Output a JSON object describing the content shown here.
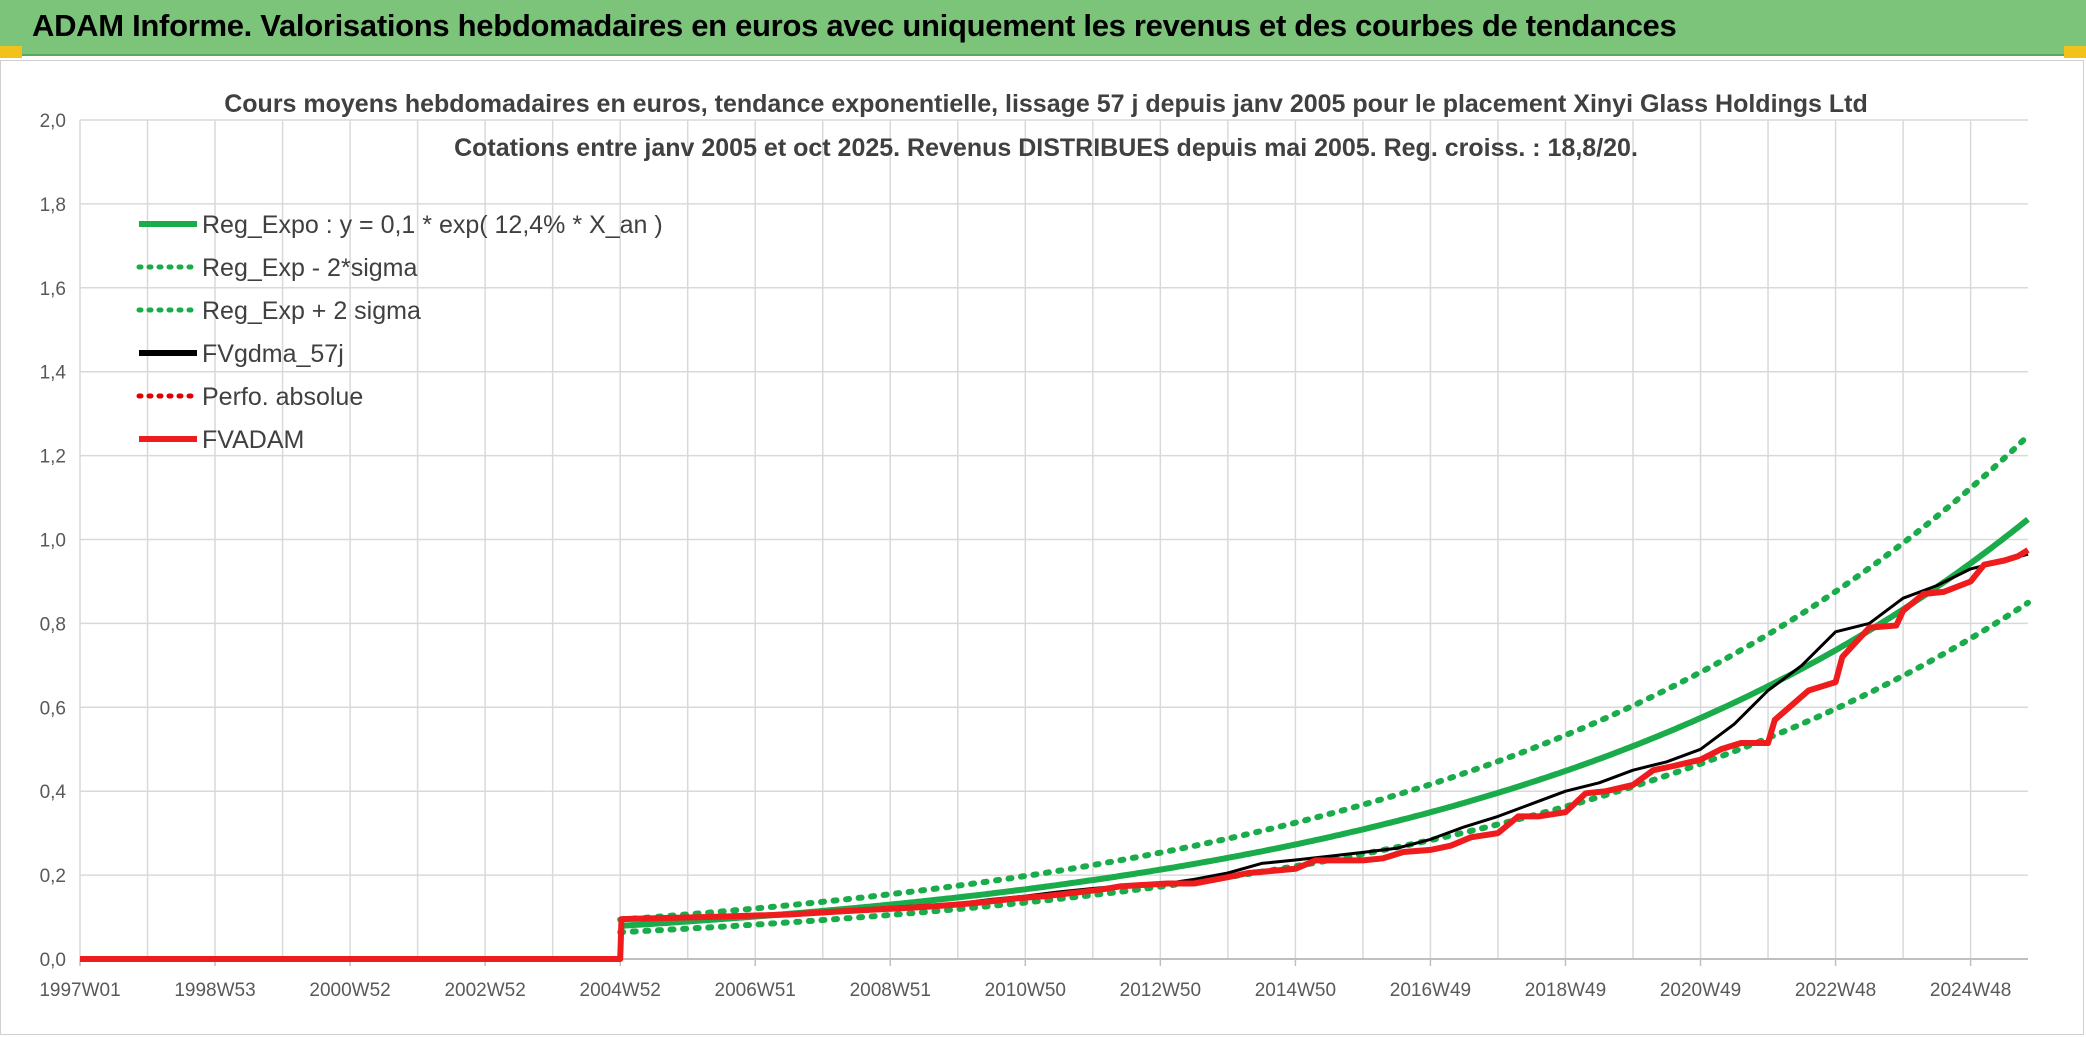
{
  "banner": {
    "title": "ADAM Informe. Valorisations hebdomadaires en euros avec uniquement les revenus et des courbes de tendances",
    "background": "#7cc47a",
    "corner_color": "#f2c21b"
  },
  "chart_data": {
    "type": "line",
    "title_lines": [
      "Cours moyens hebdomadaires en euros, tendance exponentielle, lissage 57 j depuis janv 2005 pour le placement Xinyi Glass Holdings Ltd",
      "Cotations entre janv 2005 et oct 2025. Revenus DISTRIBUES depuis mai 2005. Reg. croiss. : 18,8/20."
    ],
    "xlabel": "",
    "ylabel": "",
    "x_range": [
      1997.0,
      2025.85
    ],
    "ylim": [
      0,
      2.0
    ],
    "y_ticks": [
      0.0,
      0.2,
      0.4,
      0.6,
      0.8,
      1.0,
      1.2,
      1.4,
      1.6,
      1.8,
      2.0
    ],
    "y_tick_labels": [
      "0,0",
      "0,2",
      "0,4",
      "0,6",
      "0,8",
      "1,0",
      "1,2",
      "1,4",
      "1,6",
      "1,8",
      "2,0"
    ],
    "x_tick_labels": [
      {
        "label": "1997W01",
        "x": 1997.0
      },
      {
        "label": "1998W53",
        "x": 1999.0
      },
      {
        "label": "2000W52",
        "x": 2001.0
      },
      {
        "label": "2002W52",
        "x": 2003.0
      },
      {
        "label": "2004W52",
        "x": 2005.0
      },
      {
        "label": "2006W51",
        "x": 2007.0
      },
      {
        "label": "2008W51",
        "x": 2009.0
      },
      {
        "label": "2010W50",
        "x": 2011.0
      },
      {
        "label": "2012W50",
        "x": 2013.0
      },
      {
        "label": "2014W50",
        "x": 2015.0
      },
      {
        "label": "2016W49",
        "x": 2017.0
      },
      {
        "label": "2018W49",
        "x": 2019.0
      },
      {
        "label": "2020W49",
        "x": 2021.0
      },
      {
        "label": "2022W48",
        "x": 2023.0
      },
      {
        "label": "2024W48",
        "x": 2025.0
      }
    ],
    "minor_grid_step_years": 1,
    "grid": true,
    "legend_position": "top-left",
    "series": [
      {
        "name": "Reg_Expo : y = 0,1 * exp( 12,4% *  X_an )",
        "color": "#1aab4b",
        "style": "solid",
        "kind": "exp",
        "start": 2005.0,
        "end": 2025.85,
        "a": 0.079,
        "growth": 0.124
      },
      {
        "name": "Reg_Exp - 2*sigma",
        "color": "#1aab4b",
        "style": "dotted",
        "kind": "exp",
        "start": 2005.0,
        "end": 2025.85,
        "a": 0.064,
        "growth": 0.124
      },
      {
        "name": "Reg_Exp + 2 sigma",
        "color": "#1aab4b",
        "style": "dotted",
        "kind": "exp",
        "start": 2005.0,
        "end": 2025.85,
        "a": 0.094,
        "growth": 0.124
      },
      {
        "name": "FVgdma_57j",
        "color": "#000000",
        "style": "solid",
        "kind": "points",
        "x": [
          2005.1,
          2006.0,
          2007.0,
          2008.0,
          2009.0,
          2010.0,
          2010.5,
          2011.0,
          2011.5,
          2012.0,
          2012.5,
          2013.0,
          2013.5,
          2014.0,
          2014.5,
          2015.0,
          2015.5,
          2016.0,
          2016.5,
          2017.0,
          2017.5,
          2018.0,
          2018.5,
          2019.0,
          2019.5,
          2020.0,
          2020.5,
          2021.0,
          2021.5,
          2022.0,
          2022.5,
          2023.0,
          2023.5,
          2024.0,
          2024.5,
          2025.0,
          2025.5,
          2025.85
        ],
        "y": [
          0.096,
          0.098,
          0.102,
          0.113,
          0.123,
          0.132,
          0.142,
          0.15,
          0.16,
          0.168,
          0.175,
          0.178,
          0.19,
          0.205,
          0.228,
          0.236,
          0.245,
          0.254,
          0.264,
          0.285,
          0.315,
          0.34,
          0.37,
          0.4,
          0.42,
          0.45,
          0.47,
          0.5,
          0.56,
          0.64,
          0.7,
          0.78,
          0.8,
          0.86,
          0.89,
          0.93,
          0.95,
          0.965
        ]
      },
      {
        "name": "Perfo. absolue",
        "color": "#e00000",
        "style": "dotted",
        "kind": "points",
        "x": [],
        "y": []
      },
      {
        "name": "FVADAM",
        "color": "#ee1c1c",
        "style": "solid",
        "kind": "points",
        "x": [
          1997.0,
          2005.0,
          2005.02,
          2006.3,
          2007.5,
          2008.3,
          2009.5,
          2010.0,
          2010.3,
          2010.9,
          2011.3,
          2012.1,
          2012.4,
          2013.1,
          2013.5,
          2014.0,
          2014.3,
          2015.0,
          2015.3,
          2016.0,
          2016.3,
          2016.6,
          2017.0,
          2017.3,
          2017.6,
          2018.0,
          2018.3,
          2018.6,
          2019.0,
          2019.3,
          2019.6,
          2020.0,
          2020.3,
          2020.6,
          2021.0,
          2021.3,
          2021.6,
          2022.0,
          2022.1,
          2022.6,
          2023.0,
          2023.1,
          2023.5,
          2023.9,
          2024.0,
          2024.3,
          2024.6,
          2025.0,
          2025.2,
          2025.5,
          2025.7,
          2025.85
        ],
        "y": [
          0.0,
          0.0,
          0.095,
          0.1,
          0.106,
          0.114,
          0.124,
          0.13,
          0.134,
          0.145,
          0.15,
          0.165,
          0.173,
          0.18,
          0.18,
          0.195,
          0.205,
          0.215,
          0.235,
          0.235,
          0.24,
          0.255,
          0.26,
          0.27,
          0.29,
          0.3,
          0.34,
          0.34,
          0.35,
          0.395,
          0.4,
          0.415,
          0.45,
          0.46,
          0.475,
          0.5,
          0.515,
          0.515,
          0.57,
          0.64,
          0.66,
          0.72,
          0.79,
          0.795,
          0.83,
          0.87,
          0.875,
          0.9,
          0.94,
          0.95,
          0.96,
          0.975
        ]
      }
    ]
  }
}
